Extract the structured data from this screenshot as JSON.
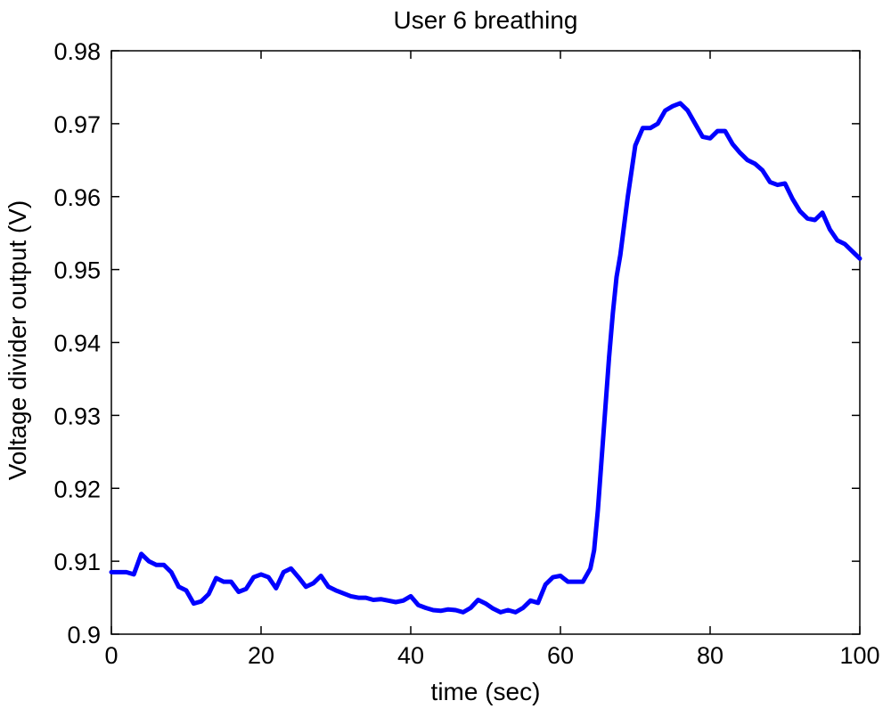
{
  "chart_data": {
    "type": "line",
    "title": "User 6 breathing",
    "xlabel": "time (sec)",
    "ylabel": "Voltage divider output (V)",
    "xlim": [
      0,
      100
    ],
    "ylim": [
      0.9,
      0.98
    ],
    "xticks": [
      0,
      20,
      40,
      60,
      80,
      100
    ],
    "xtick_labels": [
      "0",
      "20",
      "40",
      "60",
      "80",
      "100"
    ],
    "yticks": [
      0.9,
      0.91,
      0.92,
      0.93,
      0.94,
      0.95,
      0.96,
      0.97,
      0.98
    ],
    "ytick_labels": [
      "0.9",
      "0.91",
      "0.92",
      "0.93",
      "0.94",
      "0.95",
      "0.96",
      "0.97",
      "0.98"
    ],
    "grid": false,
    "line_color": "#0000ff",
    "series": [
      {
        "points": [
          [
            0,
            0.9085
          ],
          [
            1,
            0.9085
          ],
          [
            2,
            0.9085
          ],
          [
            3,
            0.9082
          ],
          [
            4,
            0.911
          ],
          [
            5,
            0.91
          ],
          [
            6,
            0.9095
          ],
          [
            7,
            0.9095
          ],
          [
            8,
            0.9085
          ],
          [
            9,
            0.9065
          ],
          [
            10,
            0.906
          ],
          [
            11,
            0.9042
          ],
          [
            12,
            0.9045
          ],
          [
            13,
            0.9055
          ],
          [
            14,
            0.9077
          ],
          [
            15,
            0.9072
          ],
          [
            16,
            0.9072
          ],
          [
            17,
            0.9058
          ],
          [
            18,
            0.9062
          ],
          [
            19,
            0.9078
          ],
          [
            20,
            0.9082
          ],
          [
            21,
            0.9078
          ],
          [
            22,
            0.9063
          ],
          [
            23,
            0.9085
          ],
          [
            24,
            0.909
          ],
          [
            25,
            0.9078
          ],
          [
            26,
            0.9065
          ],
          [
            27,
            0.907
          ],
          [
            28,
            0.908
          ],
          [
            29,
            0.9065
          ],
          [
            30,
            0.906
          ],
          [
            31,
            0.9056
          ],
          [
            32,
            0.9052
          ],
          [
            33,
            0.905
          ],
          [
            34,
            0.905
          ],
          [
            35,
            0.9047
          ],
          [
            36,
            0.9048
          ],
          [
            37,
            0.9046
          ],
          [
            38,
            0.9044
          ],
          [
            39,
            0.9046
          ],
          [
            40,
            0.9052
          ],
          [
            41,
            0.904
          ],
          [
            42,
            0.9036
          ],
          [
            43,
            0.9033
          ],
          [
            44,
            0.9032
          ],
          [
            45,
            0.9034
          ],
          [
            46,
            0.9033
          ],
          [
            47,
            0.903
          ],
          [
            48,
            0.9036
          ],
          [
            49,
            0.9047
          ],
          [
            50,
            0.9042
          ],
          [
            51,
            0.9035
          ],
          [
            52,
            0.903
          ],
          [
            53,
            0.9033
          ],
          [
            54,
            0.903
          ],
          [
            55,
            0.9036
          ],
          [
            56,
            0.9046
          ],
          [
            57,
            0.9043
          ],
          [
            58,
            0.9068
          ],
          [
            59,
            0.9078
          ],
          [
            60,
            0.908
          ],
          [
            61,
            0.9072
          ],
          [
            62,
            0.9072
          ],
          [
            63,
            0.9072
          ],
          [
            64,
            0.909
          ],
          [
            64.5,
            0.9115
          ],
          [
            65,
            0.917
          ],
          [
            65.5,
            0.924
          ],
          [
            66,
            0.931
          ],
          [
            66.5,
            0.938
          ],
          [
            67,
            0.944
          ],
          [
            67.5,
            0.949
          ],
          [
            68,
            0.952
          ],
          [
            68.5,
            0.956
          ],
          [
            69,
            0.96
          ],
          [
            69.5,
            0.9635
          ],
          [
            70,
            0.967
          ],
          [
            71,
            0.9694
          ],
          [
            72,
            0.9694
          ],
          [
            73,
            0.97
          ],
          [
            74,
            0.9718
          ],
          [
            75,
            0.9724
          ],
          [
            76,
            0.9728
          ],
          [
            77,
            0.9718
          ],
          [
            78,
            0.97
          ],
          [
            79,
            0.9682
          ],
          [
            80,
            0.968
          ],
          [
            81,
            0.969
          ],
          [
            82,
            0.969
          ],
          [
            83,
            0.9672
          ],
          [
            84,
            0.966
          ],
          [
            85,
            0.965
          ],
          [
            86,
            0.9645
          ],
          [
            87,
            0.9636
          ],
          [
            88,
            0.962
          ],
          [
            89,
            0.9616
          ],
          [
            90,
            0.9618
          ],
          [
            91,
            0.9597
          ],
          [
            92,
            0.958
          ],
          [
            93,
            0.957
          ],
          [
            94,
            0.9568
          ],
          [
            95,
            0.9578
          ],
          [
            96,
            0.9555
          ],
          [
            97,
            0.954
          ],
          [
            98,
            0.9535
          ],
          [
            99,
            0.9525
          ],
          [
            100,
            0.9515
          ]
        ]
      }
    ]
  }
}
